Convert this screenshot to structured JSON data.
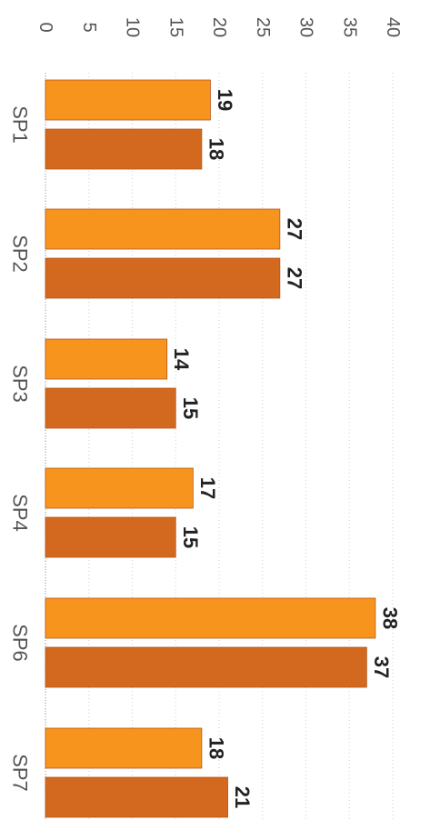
{
  "chart_data": {
    "type": "bar",
    "orientation": "rotated-90-clockwise",
    "categories": [
      "SP1",
      "SP2",
      "SP3",
      "SP4",
      "SP6",
      "SP7"
    ],
    "series": [
      {
        "values": [
          19,
          27,
          14,
          17,
          38,
          18
        ]
      },
      {
        "values": [
          18,
          27,
          15,
          15,
          37,
          21
        ]
      }
    ],
    "ylim": [
      0,
      40
    ],
    "yticks": [
      0,
      5,
      10,
      15,
      20,
      25,
      30,
      35,
      40
    ],
    "grid": true,
    "legend": "none",
    "colors": {
      "series_1": "#f7941d",
      "series_2": "#d2691e",
      "grid": "#cfcfcf"
    }
  }
}
